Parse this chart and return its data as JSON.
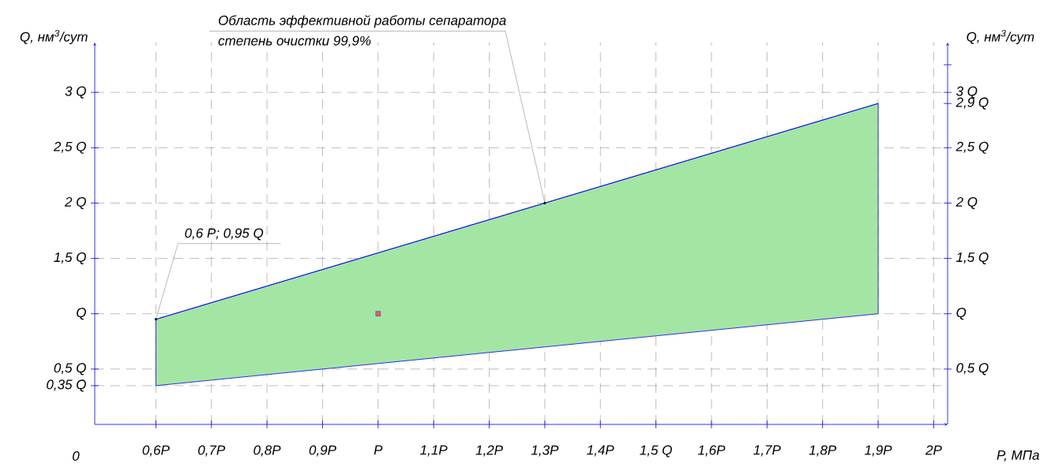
{
  "chart_data": {
    "type": "line",
    "xlabel": "P, МПа",
    "ylabel": "Q, нм$^{3}$/сут",
    "y2label": "Q, нм$^{3}$/сут",
    "xlim": [
      0.49,
      2.025
    ],
    "xticks": [
      {
        "value": 0.6,
        "label": "0,6P"
      },
      {
        "value": 0.7,
        "label": "0,7P"
      },
      {
        "value": 0.8,
        "label": "0,8P"
      },
      {
        "value": 0.9,
        "label": "0,9P"
      },
      {
        "value": 1,
        "label": "P"
      },
      {
        "value": 1.1,
        "label": "1,1P"
      },
      {
        "value": 1.2,
        "label": "1,2P"
      },
      {
        "value": 1.3,
        "label": "1,3P"
      },
      {
        "value": 1.4,
        "label": "1,4P"
      },
      {
        "value": 1.5,
        "label": "1,5 Q"
      },
      {
        "value": 1.6,
        "label": "1,6P"
      },
      {
        "value": 1.7,
        "label": "1,7P"
      },
      {
        "value": 1.8,
        "label": "1,8P"
      },
      {
        "value": 1.9,
        "label": "1,9P"
      },
      {
        "value": 2,
        "label": "2P"
      }
    ],
    "ylim": [
      0,
      3.45
    ],
    "yticks": [
      {
        "value": 0.35,
        "label": "0,35 Q"
      },
      {
        "value": 0.5,
        "label": "0,5 Q"
      },
      {
        "value": 1,
        "label": "Q"
      },
      {
        "value": 1.5,
        "label": "1,5 Q"
      },
      {
        "value": 2,
        "label": "2 Q"
      },
      {
        "value": 2.5,
        "label": "2,5 Q"
      },
      {
        "value": 3,
        "label": "3 Q"
      }
    ],
    "y2lim": [
      0,
      3.45
    ],
    "y2ticks": [
      {
        "value": 0.5,
        "label": "0,5 Q"
      },
      {
        "value": 1,
        "label": "Q"
      },
      {
        "value": 1.5,
        "label": "1,5 Q"
      },
      {
        "value": 2,
        "label": "2 Q"
      },
      {
        "value": 2.5,
        "label": "2,5 Q"
      },
      {
        "value": 2.9,
        "label": "2,9 Q"
      },
      {
        "value": 3,
        "label": "3 Q"
      },
      {
        "value": 3.25,
        "label": null
      }
    ],
    "series": [
      {
        "x": [
          0.6,
          1.9
        ],
        "values": [
          0.95,
          2.9
        ],
        "lower": [
          0.35,
          1
        ],
        "upper": [
          0.95,
          2.9
        ],
        "color": "#0000ff"
      },
      {
        "type": "scatter",
        "x": [
          1
        ],
        "values": [
          1
        ],
        "color": "#e06060",
        "marker": "square"
      }
    ],
    "grid": true,
    "annotations": [
      {
        "text": "Область эффективной работы сепаратора",
        "x": 1.3,
        "y": 2
      },
      "степень очистки 99,9%",
      {
        "text": "0,6 P; 0,95 Q",
        "x": 0.6,
        "y": 0.95
      },
      "0"
    ]
  }
}
